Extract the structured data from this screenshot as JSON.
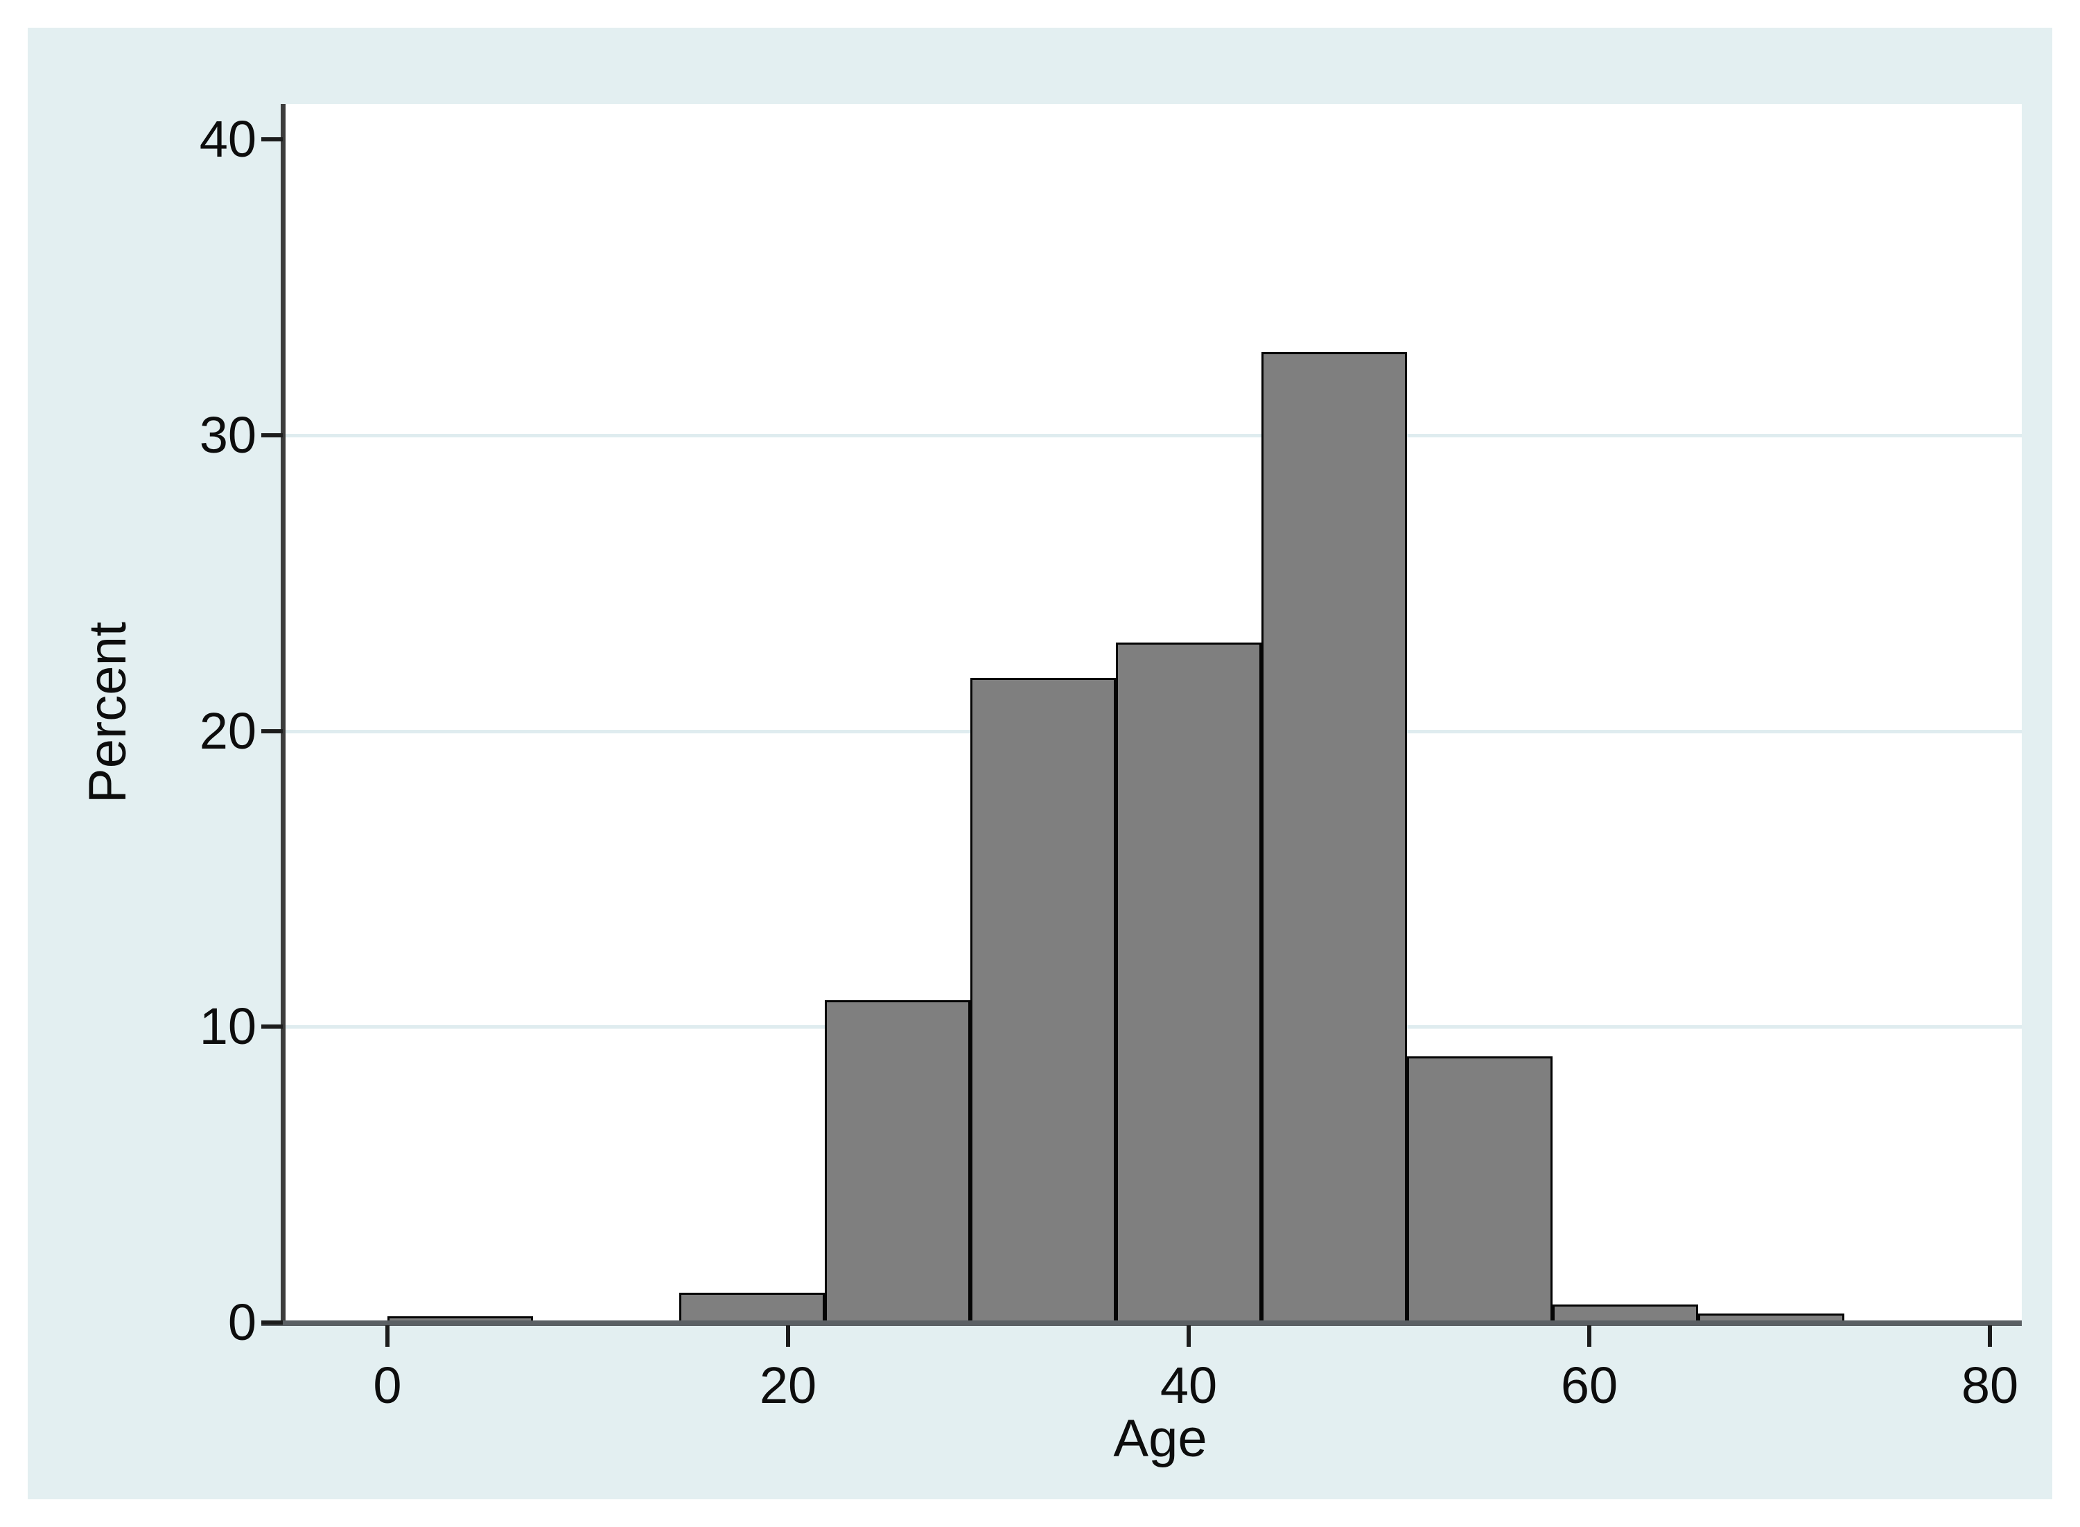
{
  "chart_data": {
    "type": "bar",
    "subtype": "histogram",
    "title": "",
    "xlabel": "Age",
    "ylabel": "Percent",
    "x_ticks": [
      0,
      20,
      40,
      60,
      80
    ],
    "y_ticks": [
      0,
      10,
      20,
      30,
      40
    ],
    "gridline_y_values": [
      10,
      20,
      30
    ],
    "xlim": [
      -5.2,
      81.6
    ],
    "ylim": [
      0,
      41.2
    ],
    "grid": true,
    "legend": "none",
    "bin_width": 7.27,
    "bins": [
      {
        "start": 0,
        "end": 7.27,
        "percent": 0.2
      },
      {
        "start": 7.27,
        "end": 14.55,
        "percent": 0
      },
      {
        "start": 14.55,
        "end": 21.82,
        "percent": 1.0
      },
      {
        "start": 21.82,
        "end": 29.09,
        "percent": 10.9
      },
      {
        "start": 29.09,
        "end": 36.36,
        "percent": 21.8
      },
      {
        "start": 36.36,
        "end": 43.64,
        "percent": 23.0
      },
      {
        "start": 43.64,
        "end": 50.91,
        "percent": 32.8
      },
      {
        "start": 50.91,
        "end": 58.18,
        "percent": 9.0
      },
      {
        "start": 58.18,
        "end": 65.45,
        "percent": 0.6
      },
      {
        "start": 65.45,
        "end": 72.73,
        "percent": 0.3
      },
      {
        "start": 72.73,
        "end": 80,
        "percent": 0
      }
    ],
    "colors": {
      "canvas_background": "#ffffff",
      "board_background": "#e3eff1",
      "plot_background": "#ffffff",
      "bar_fill": "#7f7f7f",
      "bar_border": "#050505",
      "gridline": "#dfecef",
      "axis_line": "#3c3c3c",
      "tick": "#1c1c1c",
      "text": "#0d0d0d"
    }
  }
}
